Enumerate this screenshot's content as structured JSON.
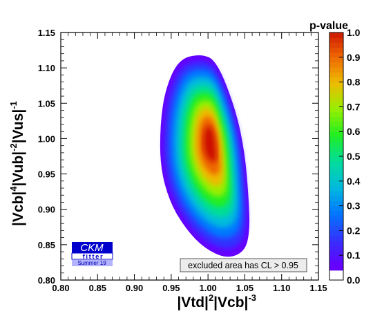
{
  "chart_data": {
    "type": "heatmap",
    "title": "",
    "xlabel": {
      "base": "|Vtd|",
      "exp1": "2",
      "mid": "|Vcb|",
      "exp2": "-3"
    },
    "ylabel": {
      "p1": "|Vcb|",
      "e1": "4",
      "p2": "|Vub|",
      "e2": "-2",
      "p3": "|Vus|",
      "e3": "-1"
    },
    "xlim": [
      0.8,
      1.15
    ],
    "ylim": [
      0.8,
      1.15
    ],
    "x_ticks": [
      "0.80",
      "0.85",
      "0.90",
      "0.95",
      "1.00",
      "1.05",
      "1.10",
      "1.15"
    ],
    "y_ticks": [
      "0.80",
      "0.85",
      "0.90",
      "0.95",
      "1.00",
      "1.05",
      "1.10",
      "1.15"
    ],
    "x_tick_values": [
      0.8,
      0.85,
      0.9,
      0.95,
      1.0,
      1.05,
      1.1,
      1.15
    ],
    "y_tick_values": [
      0.8,
      0.85,
      0.9,
      0.95,
      1.0,
      1.05,
      1.1,
      1.15
    ],
    "colorbar": {
      "title": "p-value",
      "range": [
        0.0,
        1.0
      ],
      "ticks": [
        "0.0",
        "0.1",
        "0.2",
        "0.3",
        "0.4",
        "0.5",
        "0.6",
        "0.7",
        "0.8",
        "0.9",
        "1.0"
      ],
      "tick_values": [
        0.0,
        0.1,
        0.2,
        0.3,
        0.4,
        0.5,
        0.6,
        0.7,
        0.8,
        0.9,
        1.0
      ]
    },
    "region": {
      "center": [
        1.0,
        0.998
      ],
      "max_p_value": 1.0,
      "outer_boundary_p": 0.05,
      "outer_boundary": [
        [
          0.96,
          1.112
        ],
        [
          0.99,
          1.12
        ],
        [
          1.012,
          1.11
        ],
        [
          1.038,
          1.04
        ],
        [
          1.05,
          0.98
        ],
        [
          1.055,
          0.92
        ],
        [
          1.057,
          0.87
        ],
        [
          1.05,
          0.84
        ],
        [
          1.025,
          0.83
        ],
        [
          0.995,
          0.845
        ],
        [
          0.97,
          0.872
        ],
        [
          0.948,
          0.91
        ],
        [
          0.935,
          0.96
        ],
        [
          0.935,
          1.02
        ],
        [
          0.942,
          1.07
        ]
      ]
    },
    "annotation": "excluded area has CL > 0.95"
  },
  "logo": {
    "main": "CKM",
    "sub": "fitter",
    "year": "Summer 19"
  },
  "colors": {
    "colorbar_stops": [
      "#ffffff",
      "#6600ff",
      "#3333ff",
      "#0077ff",
      "#00bbdd",
      "#00dd99",
      "#22ee22",
      "#99ee00",
      "#eebb00",
      "#ee6600",
      "#cc1100"
    ],
    "logo_blue": "#0000cc",
    "logo_light": "#b3b3ff"
  }
}
